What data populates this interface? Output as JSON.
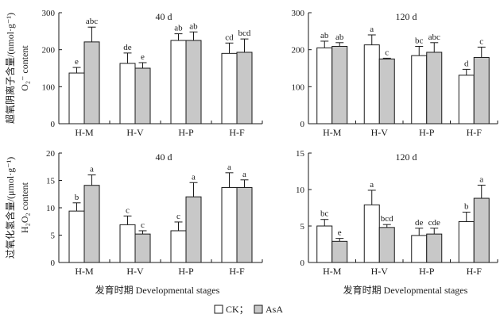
{
  "chart_data": [
    {
      "type": "bar",
      "panel_label": "40 d",
      "categories": [
        "H-M",
        "H-V",
        "H-P",
        "H-F"
      ],
      "ylim": [
        0,
        300
      ],
      "yticks": [
        0,
        100,
        200,
        300
      ],
      "ylabel": "",
      "xlabel": "",
      "series": [
        {
          "name": "CK",
          "values": [
            137,
            163,
            225,
            190
          ],
          "errors": [
            15,
            28,
            18,
            28
          ],
          "letters": [
            "e",
            "de",
            "ab",
            "cd"
          ]
        },
        {
          "name": "AsA",
          "values": [
            221,
            150,
            225,
            193
          ],
          "errors": [
            40,
            15,
            23,
            36
          ],
          "letters": [
            "abc",
            "e",
            "ab",
            "bcd"
          ]
        }
      ]
    },
    {
      "type": "bar",
      "panel_label": "120 d",
      "categories": [
        "H-M",
        "H-V",
        "H-P",
        "H-F"
      ],
      "ylim": [
        0,
        300
      ],
      "yticks": [
        0,
        100,
        200,
        300
      ],
      "ylabel": "",
      "xlabel": "",
      "series": [
        {
          "name": "CK",
          "values": [
            205,
            213,
            184,
            131
          ],
          "errors": [
            18,
            27,
            25,
            16
          ],
          "letters": [
            "ab",
            "a",
            "bc",
            "d"
          ]
        },
        {
          "name": "AsA",
          "values": [
            209,
            175,
            193,
            179
          ],
          "errors": [
            10,
            2,
            26,
            28
          ],
          "letters": [
            "ab",
            "c",
            "abc",
            "c"
          ]
        }
      ]
    },
    {
      "type": "bar",
      "panel_label": "40 d",
      "categories": [
        "H-M",
        "H-V",
        "H-P",
        "H-F"
      ],
      "ylim": [
        0,
        20
      ],
      "yticks": [
        0,
        5,
        10,
        15,
        20
      ],
      "ylabel": "",
      "xlabel": "",
      "series": [
        {
          "name": "CK",
          "values": [
            9.4,
            6.9,
            5.8,
            13.7
          ],
          "errors": [
            1.5,
            1.6,
            1.6,
            2.7
          ],
          "letters": [
            "b",
            "c",
            "c",
            "a"
          ]
        },
        {
          "name": "AsA",
          "values": [
            14.1,
            5.2,
            12.0,
            13.7
          ],
          "errors": [
            1.9,
            0.6,
            2.6,
            1.4
          ],
          "letters": [
            "a",
            "c",
            "a",
            "a"
          ]
        }
      ]
    },
    {
      "type": "bar",
      "panel_label": "120 d",
      "categories": [
        "H-M",
        "H-V",
        "H-P",
        "H-F"
      ],
      "ylim": [
        0,
        15
      ],
      "yticks": [
        0,
        5,
        10,
        15
      ],
      "ylabel": "",
      "xlabel": "",
      "series": [
        {
          "name": "CK",
          "values": [
            5.0,
            7.9,
            3.7,
            5.6
          ],
          "errors": [
            0.9,
            2.0,
            1.0,
            1.3
          ],
          "letters": [
            "bc",
            "a",
            "de",
            "b"
          ]
        },
        {
          "name": "AsA",
          "values": [
            2.9,
            4.8,
            3.9,
            8.8
          ],
          "errors": [
            0.4,
            0.4,
            0.8,
            1.8
          ],
          "letters": [
            "e",
            "bcd",
            "cde",
            "a"
          ]
        }
      ]
    }
  ],
  "labels": {
    "o2_ylabel_cn": "超氧阴离子含量/(nmol·g⁻¹)",
    "o2_ylabel_en": "O₂⁻ content",
    "h2o2_ylabel_cn": "过氧化氢含量/(μmol·g⁻¹)",
    "h2o2_ylabel_en": "H₂O₂ content",
    "xlabel": "发育时期 Developmental stages"
  },
  "legend": {
    "items": [
      {
        "name": "CK",
        "text": "CK；",
        "color": "#ffffff"
      },
      {
        "name": "AsA",
        "text": "AsA",
        "color": "#c8c8c8"
      }
    ]
  }
}
